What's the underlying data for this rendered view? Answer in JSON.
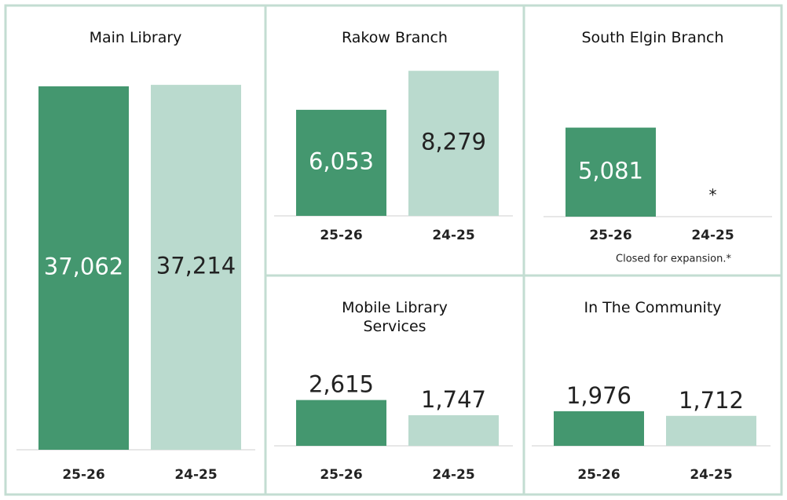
{
  "chart_data": [
    {
      "type": "bar",
      "title": "Main Library",
      "categories": [
        "25-26",
        "24-25"
      ],
      "values": [
        37062,
        37214
      ],
      "value_labels": [
        "37,062",
        "37,214"
      ],
      "colors": [
        "#44976f",
        "#badace"
      ]
    },
    {
      "type": "bar",
      "title": "Rakow Branch",
      "categories": [
        "25-26",
        "24-25"
      ],
      "values": [
        6053,
        8279
      ],
      "value_labels": [
        "6,053",
        "8,279"
      ],
      "colors": [
        "#44976f",
        "#badace"
      ]
    },
    {
      "type": "bar",
      "title": "South Elgin Branch",
      "categories": [
        "25-26",
        "24-25"
      ],
      "values": [
        5081,
        null
      ],
      "value_labels": [
        "5,081",
        "*"
      ],
      "colors": [
        "#44976f",
        "#badace"
      ],
      "annotation": "Closed for expansion.*"
    },
    {
      "type": "bar",
      "title": "Mobile Library Services",
      "categories": [
        "25-26",
        "24-25"
      ],
      "values": [
        2615,
        1747
      ],
      "value_labels": [
        "2,615",
        "1,747"
      ],
      "colors": [
        "#44976f",
        "#badace"
      ]
    },
    {
      "type": "bar",
      "title": "In The Community",
      "categories": [
        "25-26",
        "24-25"
      ],
      "values": [
        1976,
        1712
      ],
      "value_labels": [
        "1,976",
        "1,712"
      ],
      "colors": [
        "#44976f",
        "#badace"
      ]
    }
  ]
}
